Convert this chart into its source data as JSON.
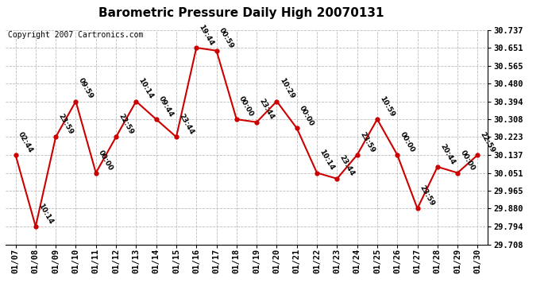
{
  "title": "Barometric Pressure Daily High 20070131",
  "copyright": "Copyright 2007 Cartronics.com",
  "dates": [
    "01/07",
    "01/08",
    "01/09",
    "01/10",
    "01/11",
    "01/12",
    "01/13",
    "01/14",
    "01/15",
    "01/16",
    "01/17",
    "01/18",
    "01/19",
    "01/20",
    "01/21",
    "01/22",
    "01/23",
    "01/24",
    "01/25",
    "01/26",
    "01/27",
    "01/28",
    "01/29",
    "01/30"
  ],
  "values": [
    30.137,
    29.794,
    30.223,
    30.394,
    30.051,
    30.223,
    30.394,
    30.308,
    30.223,
    30.651,
    30.637,
    30.308,
    30.294,
    30.394,
    30.265,
    30.051,
    30.023,
    30.137,
    30.308,
    30.137,
    29.88,
    30.08,
    30.051,
    30.137
  ],
  "labels": [
    "02:44",
    "10:14",
    "23:59",
    "09:59",
    "00:00",
    "22:59",
    "10:14",
    "09:44",
    "23:44",
    "19:44",
    "00:59",
    "00:00",
    "23:44",
    "10:29",
    "00:00",
    "10:14",
    "23:44",
    "23:59",
    "10:59",
    "00:00",
    "23:59",
    "20:44",
    "00:00",
    "22:59"
  ],
  "yticks": [
    29.708,
    29.794,
    29.88,
    29.965,
    30.051,
    30.137,
    30.223,
    30.308,
    30.394,
    30.48,
    30.565,
    30.651,
    30.737
  ],
  "ylim_min": 29.708,
  "ylim_max": 30.737,
  "line_color": "#cc0000",
  "marker_color": "#cc0000",
  "background_color": "#ffffff",
  "grid_color": "#bbbbbb",
  "title_fontsize": 11,
  "copyright_fontsize": 7,
  "label_fontsize": 6.5,
  "tick_fontsize": 7.5
}
